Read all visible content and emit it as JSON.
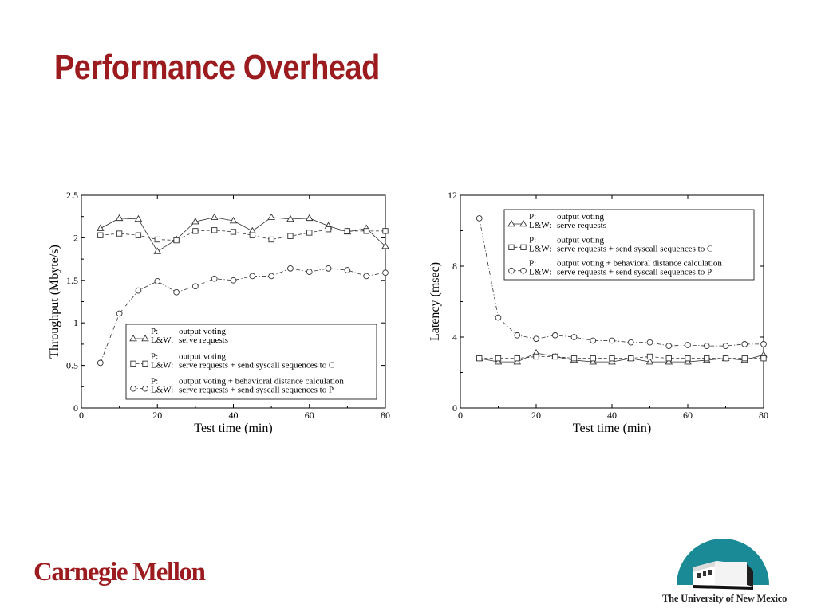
{
  "slide": {
    "title": "Performance Overhead",
    "footer_left_logo": "Carnegie Mellon",
    "footer_right_logo": "The University of New Mexico"
  },
  "chart_data": [
    {
      "type": "line",
      "xlabel": "Test time (min)",
      "ylabel": "Throughput (Mbyte/s)",
      "xlim": [
        0,
        80
      ],
      "ylim": [
        0,
        2.5
      ],
      "xticks": [
        0,
        20,
        40,
        60,
        80
      ],
      "yticks": [
        0,
        0.5,
        1,
        1.5,
        2,
        2.5
      ],
      "ytick_labels": [
        "0",
        "0.5",
        "1",
        "1.5",
        "2",
        "2.5"
      ],
      "legend_position": "bottom-right",
      "grid": false,
      "x": [
        5,
        10,
        15,
        20,
        25,
        30,
        35,
        40,
        45,
        50,
        55,
        60,
        65,
        70,
        75,
        80
      ],
      "series": [
        {
          "marker": "triangle",
          "dash": "solid",
          "legend_p": "output voting",
          "legend_lw": "serve requests",
          "values": [
            2.11,
            2.23,
            2.22,
            1.84,
            1.98,
            2.19,
            2.24,
            2.2,
            2.08,
            2.24,
            2.22,
            2.23,
            2.14,
            2.07,
            2.11,
            1.9
          ]
        },
        {
          "marker": "square",
          "dash": "dashed",
          "legend_p": "output voting",
          "legend_lw": "serve requests + send syscall sequences to C",
          "values": [
            2.03,
            2.05,
            2.03,
            1.98,
            1.97,
            2.08,
            2.09,
            2.07,
            2.03,
            1.98,
            2.02,
            2.06,
            2.1,
            2.08,
            2.08,
            2.08
          ]
        },
        {
          "marker": "circle",
          "dash": "dashdot",
          "legend_p": "output voting + behavioral distance calculation",
          "legend_lw": "serve requests + send syscall sequences to P",
          "values": [
            0.53,
            1.11,
            1.38,
            1.49,
            1.36,
            1.43,
            1.52,
            1.5,
            1.55,
            1.55,
            1.64,
            1.6,
            1.64,
            1.62,
            1.55,
            1.59
          ]
        }
      ]
    },
    {
      "type": "line",
      "xlabel": "Test time (min)",
      "ylabel": "Latency (msec)",
      "xlim": [
        0,
        80
      ],
      "ylim": [
        0,
        12
      ],
      "xticks": [
        0,
        20,
        40,
        60,
        80
      ],
      "yticks": [
        0,
        4,
        8,
        12
      ],
      "ytick_labels": [
        "0",
        "4",
        "8",
        "12"
      ],
      "legend_position": "top-right",
      "grid": false,
      "x": [
        5,
        10,
        15,
        20,
        25,
        30,
        35,
        40,
        45,
        50,
        55,
        60,
        65,
        70,
        75,
        80
      ],
      "series": [
        {
          "marker": "triangle",
          "dash": "solid",
          "legend_p": "output voting",
          "legend_lw": "serve requests",
          "values": [
            2.8,
            2.6,
            2.6,
            3.1,
            2.9,
            2.7,
            2.6,
            2.6,
            2.8,
            2.6,
            2.6,
            2.6,
            2.7,
            2.8,
            2.7,
            3.0
          ]
        },
        {
          "marker": "square",
          "dash": "dashed",
          "legend_p": "output voting",
          "legend_lw": "serve requests + send syscall sequences to C",
          "values": [
            2.8,
            2.8,
            2.8,
            2.9,
            2.9,
            2.8,
            2.8,
            2.8,
            2.8,
            2.9,
            2.8,
            2.8,
            2.8,
            2.8,
            2.8,
            2.8
          ]
        },
        {
          "marker": "circle",
          "dash": "dashdot",
          "legend_p": "output voting + behavioral distance calculation",
          "legend_lw": "serve requests + send syscall sequences to P",
          "values": [
            10.7,
            5.1,
            4.1,
            3.9,
            4.1,
            4.0,
            3.8,
            3.8,
            3.7,
            3.7,
            3.5,
            3.55,
            3.5,
            3.5,
            3.6,
            3.6
          ]
        }
      ]
    }
  ],
  "legend": {
    "p_key": "P:",
    "lw_key": "L&W:"
  },
  "colors": {
    "title": "#9b1b1e",
    "line": "#333333",
    "unm_teal": "#1a8a96"
  }
}
